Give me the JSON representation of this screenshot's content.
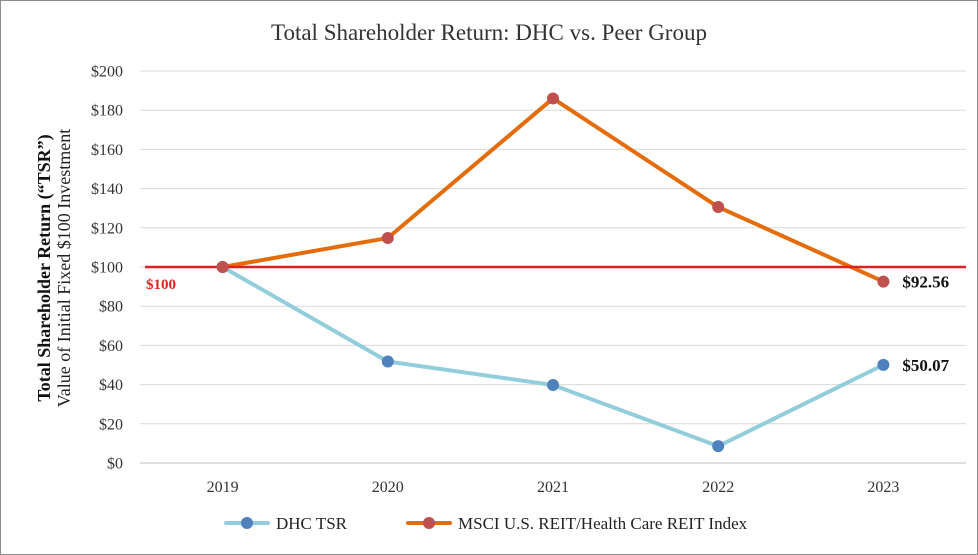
{
  "chart_data": {
    "type": "line",
    "title": "Total Shareholder Return: DHC vs. Peer Group",
    "ylabel_bold": "Total Shareholder Return (“TSR”)",
    "ylabel": "Value of Initial Fixed $100 Investment",
    "xlabel": "",
    "ylim": [
      0,
      200
    ],
    "y_ticks": [
      0,
      20,
      40,
      60,
      80,
      100,
      120,
      140,
      160,
      180,
      200
    ],
    "y_tick_labels": [
      "$0",
      "$20",
      "$40",
      "$60",
      "$80",
      "$100",
      "$120",
      "$140",
      "$160",
      "$180",
      "$200"
    ],
    "categories": [
      "2019",
      "2020",
      "2021",
      "2022",
      "2023"
    ],
    "grid": true,
    "legend_position": "bottom",
    "series": [
      {
        "name": "DHC TSR",
        "values": [
          100,
          51.8,
          39.8,
          8.6,
          50.07
        ],
        "line_color": "#92cddc",
        "marker_color": "#4f81bd",
        "end_label": "$50.07"
      },
      {
        "name": "MSCI U.S. REIT/Health Care REIT Index",
        "values": [
          100,
          114.8,
          186,
          130.6,
          92.56
        ],
        "line_color": "#e46c0a",
        "marker_color": "#c0504d",
        "end_label": "$92.56"
      }
    ],
    "reference_line": {
      "value": 100,
      "label": "$100",
      "color": "#e02020"
    }
  }
}
